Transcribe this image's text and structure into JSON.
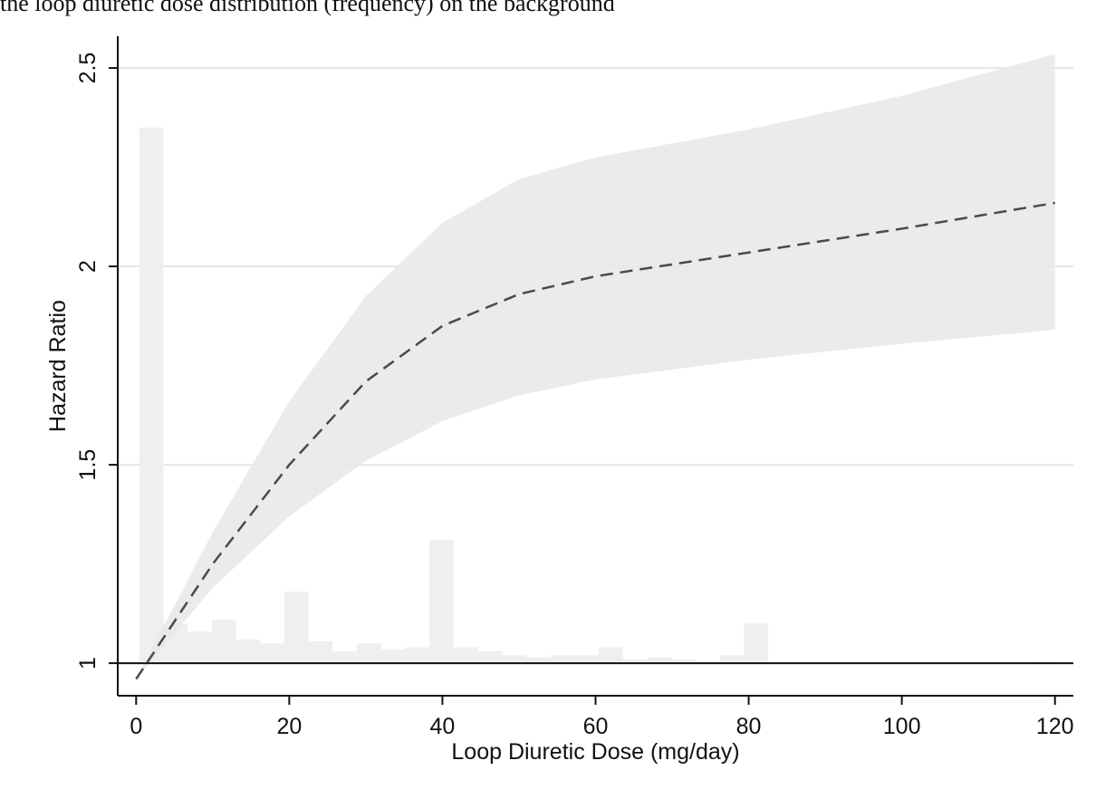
{
  "caption": "the loop diuretic dose distribution (frequency) on the background",
  "chart_data": {
    "type": "line",
    "xlabel": "Loop Diuretic Dose (mg/day)",
    "ylabel": "Hazard Ratio",
    "xlim": [
      -2.4,
      122.4
    ],
    "ylim": [
      0.918,
      2.58
    ],
    "xticks": [
      0,
      20,
      40,
      60,
      80,
      100,
      120
    ],
    "yticks": [
      1,
      1.5,
      2,
      2.5
    ],
    "grid": true,
    "refline": 1,
    "x": [
      0,
      10,
      20,
      30,
      40,
      50,
      60,
      80,
      100,
      120
    ],
    "series": [
      {
        "color": "#4a4a4a",
        "dash": true,
        "values": [
          0.96,
          1.25,
          1.5,
          1.71,
          1.85,
          1.93,
          1.975,
          2.035,
          2.095,
          2.16
        ]
      }
    ],
    "band": {
      "color": "#e8e8e8",
      "lower": [
        0.96,
        1.19,
        1.37,
        1.51,
        1.61,
        1.675,
        1.715,
        1.765,
        1.805,
        1.84
      ],
      "upper": [
        0.96,
        1.33,
        1.66,
        1.925,
        2.11,
        2.22,
        2.275,
        2.345,
        2.43,
        2.535
      ]
    },
    "histogram": {
      "color": "#efefef",
      "bins": [
        0.4,
        3.56,
        6.72,
        9.88,
        13.04,
        16.2,
        19.36,
        22.52,
        25.68,
        28.84,
        32,
        35.16,
        38.32,
        41.48,
        44.64,
        47.8,
        50.96,
        54.12,
        57.28,
        60.44,
        63.6,
        66.76,
        69.92,
        73.08,
        76.24,
        79.4,
        82.56,
        85.72,
        88.88,
        92.04,
        95.2,
        98.36,
        101.52,
        104.68,
        107.84,
        111,
        114.16,
        117.32,
        120.48
      ],
      "values": [
        2.35,
        1.1,
        1.08,
        1.11,
        1.06,
        1.05,
        1.18,
        1.055,
        1.03,
        1.05,
        1.035,
        1.04,
        1.31,
        1.04,
        1.03,
        1.02,
        1.015,
        1.02,
        1.02,
        1.04,
        1.01,
        1.015,
        1.01,
        1.005,
        1.02,
        1.1,
        1,
        1,
        1,
        1,
        1,
        1,
        1,
        1,
        1,
        1,
        1,
        1.005
      ]
    }
  }
}
